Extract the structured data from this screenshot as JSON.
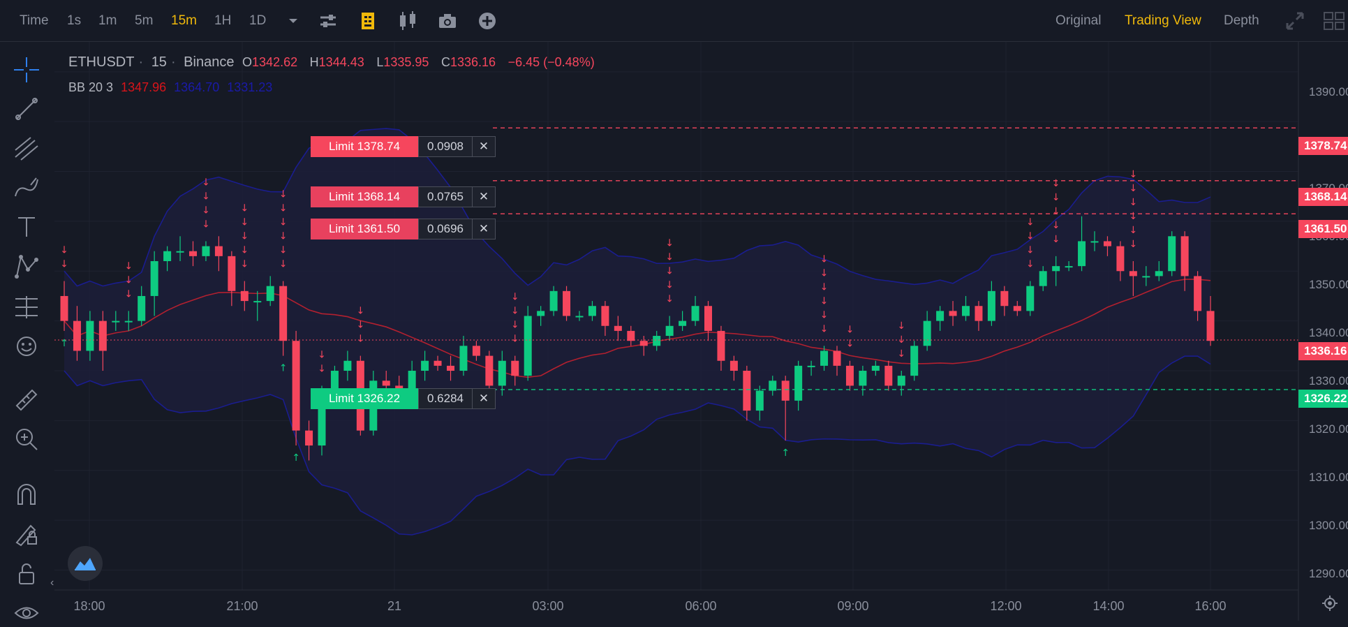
{
  "toolbar": {
    "time_label": "Time",
    "intervals": [
      "1s",
      "1m",
      "5m",
      "15m",
      "1H",
      "1D"
    ],
    "active_interval": "15m",
    "views": [
      "Original",
      "Trading View",
      "Depth"
    ],
    "active_view": "Trading View",
    "icons": [
      "chevron-down-icon",
      "indicators-icon",
      "template-icon",
      "candle-style-icon",
      "camera-icon",
      "add-icon",
      "expand-icon",
      "layout-icon"
    ]
  },
  "legend": {
    "symbol": "ETHUSDT",
    "interval": "15",
    "exchange": "Binance",
    "open_label": "O",
    "open": "1342.62",
    "high_label": "H",
    "high": "1344.43",
    "low_label": "L",
    "low": "1335.95",
    "close_label": "C",
    "close": "1336.16",
    "change": "−6.45 (−0.48%)",
    "bb_label": "BB 20 3",
    "bb_values": [
      "1347.96",
      "1364.70",
      "1331.23"
    ]
  },
  "orders": [
    {
      "label": "Limit 1378.74",
      "qty": "0.0908",
      "close": "✕",
      "side": "sell",
      "price": 1378.74,
      "tag": "1378.74"
    },
    {
      "label": "Limit 1368.14",
      "qty": "0.0765",
      "close": "✕",
      "side": "sell",
      "price": 1368.14,
      "tag": "1368.14"
    },
    {
      "label": "Limit 1361.50",
      "qty": "0.0696",
      "close": "✕",
      "side": "sell",
      "price": 1361.5,
      "tag": "1361.50"
    },
    {
      "label": "Limit 1326.22",
      "qty": "0.6284",
      "close": "✕",
      "side": "buy",
      "price": 1326.22,
      "tag": "1326.22"
    }
  ],
  "last_price_tag": "1336.16",
  "y_axis": [
    "1390.00",
    "1370.00",
    "1360.00",
    "1350.00",
    "1340.00",
    "1330.00",
    "1320.00",
    "1310.00",
    "1300.00",
    "1290.00"
  ],
  "x_axis": [
    "18:00",
    "21:00",
    "21",
    "03:00",
    "06:00",
    "09:00",
    "12:00",
    "14:00",
    "16:00"
  ],
  "colors": {
    "up": "#0ecb81",
    "down": "#f6465d",
    "accent": "#f0b90b",
    "bb_band": "#1a1d8f",
    "bb_mid": "#b3202f",
    "bg": "#161a25"
  },
  "sidebar_icons": [
    "crosshair-icon",
    "trend-line-icon",
    "fib-icon",
    "brush-icon",
    "text-icon",
    "pattern-icon",
    "forecast-icon",
    "emoji-icon",
    "ruler-icon",
    "zoom-in-icon",
    "magnet-icon",
    "lock-drawing-icon",
    "unlock-icon",
    "eye-icon"
  ],
  "chart_data": {
    "type": "candlestick",
    "ylim": [
      1286,
      1396
    ],
    "candles": [
      [
        1345,
        1340,
        1348,
        1338
      ],
      [
        1340,
        1334,
        1343,
        1332
      ],
      [
        1334,
        1340,
        1342,
        1332
      ],
      [
        1340,
        1334,
        1342,
        1330
      ],
      [
        1340,
        1340,
        1342,
        1338
      ],
      [
        1340,
        1340,
        1342,
        1338
      ],
      [
        1340,
        1345,
        1347,
        1339
      ],
      [
        1345,
        1352,
        1354,
        1341
      ],
      [
        1352,
        1354,
        1355,
        1350
      ],
      [
        1354,
        1354,
        1357,
        1352
      ],
      [
        1354,
        1353,
        1356,
        1351
      ],
      [
        1353,
        1355,
        1356,
        1352
      ],
      [
        1355,
        1353,
        1357,
        1350
      ],
      [
        1353,
        1346,
        1354,
        1343
      ],
      [
        1346,
        1344,
        1348,
        1342
      ],
      [
        1344,
        1344,
        1346,
        1340
      ],
      [
        1344,
        1347,
        1349,
        1343
      ],
      [
        1347,
        1336,
        1348,
        1333
      ],
      [
        1336,
        1318,
        1338,
        1315
      ],
      [
        1318,
        1315,
        1320,
        1312
      ],
      [
        1315,
        1325,
        1327,
        1313
      ],
      [
        1325,
        1330,
        1331,
        1324
      ],
      [
        1330,
        1332,
        1334,
        1328
      ],
      [
        1332,
        1318,
        1333,
        1317
      ],
      [
        1318,
        1328,
        1330,
        1317
      ],
      [
        1328,
        1327,
        1330,
        1325
      ],
      [
        1327,
        1325,
        1329,
        1323
      ],
      [
        1325,
        1330,
        1332,
        1323
      ],
      [
        1330,
        1332,
        1334,
        1328
      ],
      [
        1332,
        1331,
        1333,
        1330
      ],
      [
        1331,
        1330,
        1333,
        1328
      ],
      [
        1330,
        1335,
        1337,
        1329
      ],
      [
        1335,
        1333,
        1336,
        1332
      ],
      [
        1333,
        1327,
        1334,
        1325
      ],
      [
        1327,
        1332,
        1334,
        1325
      ],
      [
        1332,
        1329,
        1333,
        1327
      ],
      [
        1329,
        1341,
        1343,
        1328
      ],
      [
        1341,
        1342,
        1343,
        1339
      ],
      [
        1342,
        1346,
        1347,
        1341
      ],
      [
        1346,
        1341,
        1347,
        1340
      ],
      [
        1341,
        1341,
        1342,
        1340
      ],
      [
        1341,
        1343,
        1344,
        1340
      ],
      [
        1343,
        1339,
        1344,
        1337
      ],
      [
        1339,
        1338,
        1341,
        1336
      ],
      [
        1338,
        1336,
        1339,
        1335
      ],
      [
        1336,
        1335,
        1337,
        1333
      ],
      [
        1335,
        1337,
        1338,
        1334
      ],
      [
        1337,
        1339,
        1341,
        1336
      ],
      [
        1339,
        1340,
        1342,
        1338
      ],
      [
        1340,
        1343,
        1345,
        1339
      ],
      [
        1343,
        1338,
        1344,
        1336
      ],
      [
        1338,
        1332,
        1339,
        1330
      ],
      [
        1332,
        1330,
        1333,
        1328
      ],
      [
        1330,
        1322,
        1331,
        1320
      ],
      [
        1322,
        1326,
        1327,
        1320
      ],
      [
        1326,
        1328,
        1329,
        1325
      ],
      [
        1328,
        1324,
        1329,
        1316
      ],
      [
        1324,
        1331,
        1332,
        1322
      ],
      [
        1331,
        1331,
        1332,
        1329
      ],
      [
        1331,
        1334,
        1335,
        1330
      ],
      [
        1334,
        1331,
        1335,
        1329
      ],
      [
        1331,
        1327,
        1332,
        1326
      ],
      [
        1327,
        1330,
        1331,
        1325
      ],
      [
        1330,
        1331,
        1332,
        1329
      ],
      [
        1331,
        1327,
        1332,
        1326
      ],
      [
        1327,
        1329,
        1330,
        1325
      ],
      [
        1329,
        1335,
        1336,
        1328
      ],
      [
        1335,
        1340,
        1342,
        1334
      ],
      [
        1340,
        1342,
        1343,
        1338
      ],
      [
        1342,
        1341,
        1344,
        1339
      ],
      [
        1341,
        1343,
        1345,
        1340
      ],
      [
        1343,
        1340,
        1344,
        1338
      ],
      [
        1340,
        1346,
        1348,
        1339
      ],
      [
        1346,
        1343,
        1347,
        1341
      ],
      [
        1343,
        1342,
        1344,
        1341
      ],
      [
        1342,
        1347,
        1348,
        1341
      ],
      [
        1347,
        1350,
        1351,
        1346
      ],
      [
        1350,
        1351,
        1353,
        1347
      ],
      [
        1351,
        1351,
        1352,
        1350
      ],
      [
        1351,
        1356,
        1361,
        1350
      ],
      [
        1356,
        1356,
        1358,
        1354
      ],
      [
        1356,
        1355,
        1357,
        1353
      ],
      [
        1355,
        1350,
        1356,
        1348
      ],
      [
        1350,
        1349,
        1352,
        1345
      ],
      [
        1349,
        1349,
        1351,
        1347
      ],
      [
        1349,
        1350,
        1352,
        1348
      ],
      [
        1350,
        1357,
        1358,
        1349
      ],
      [
        1357,
        1349,
        1358,
        1346
      ],
      [
        1349,
        1342,
        1350,
        1340
      ],
      [
        1342,
        1336,
        1345,
        1335
      ]
    ]
  }
}
